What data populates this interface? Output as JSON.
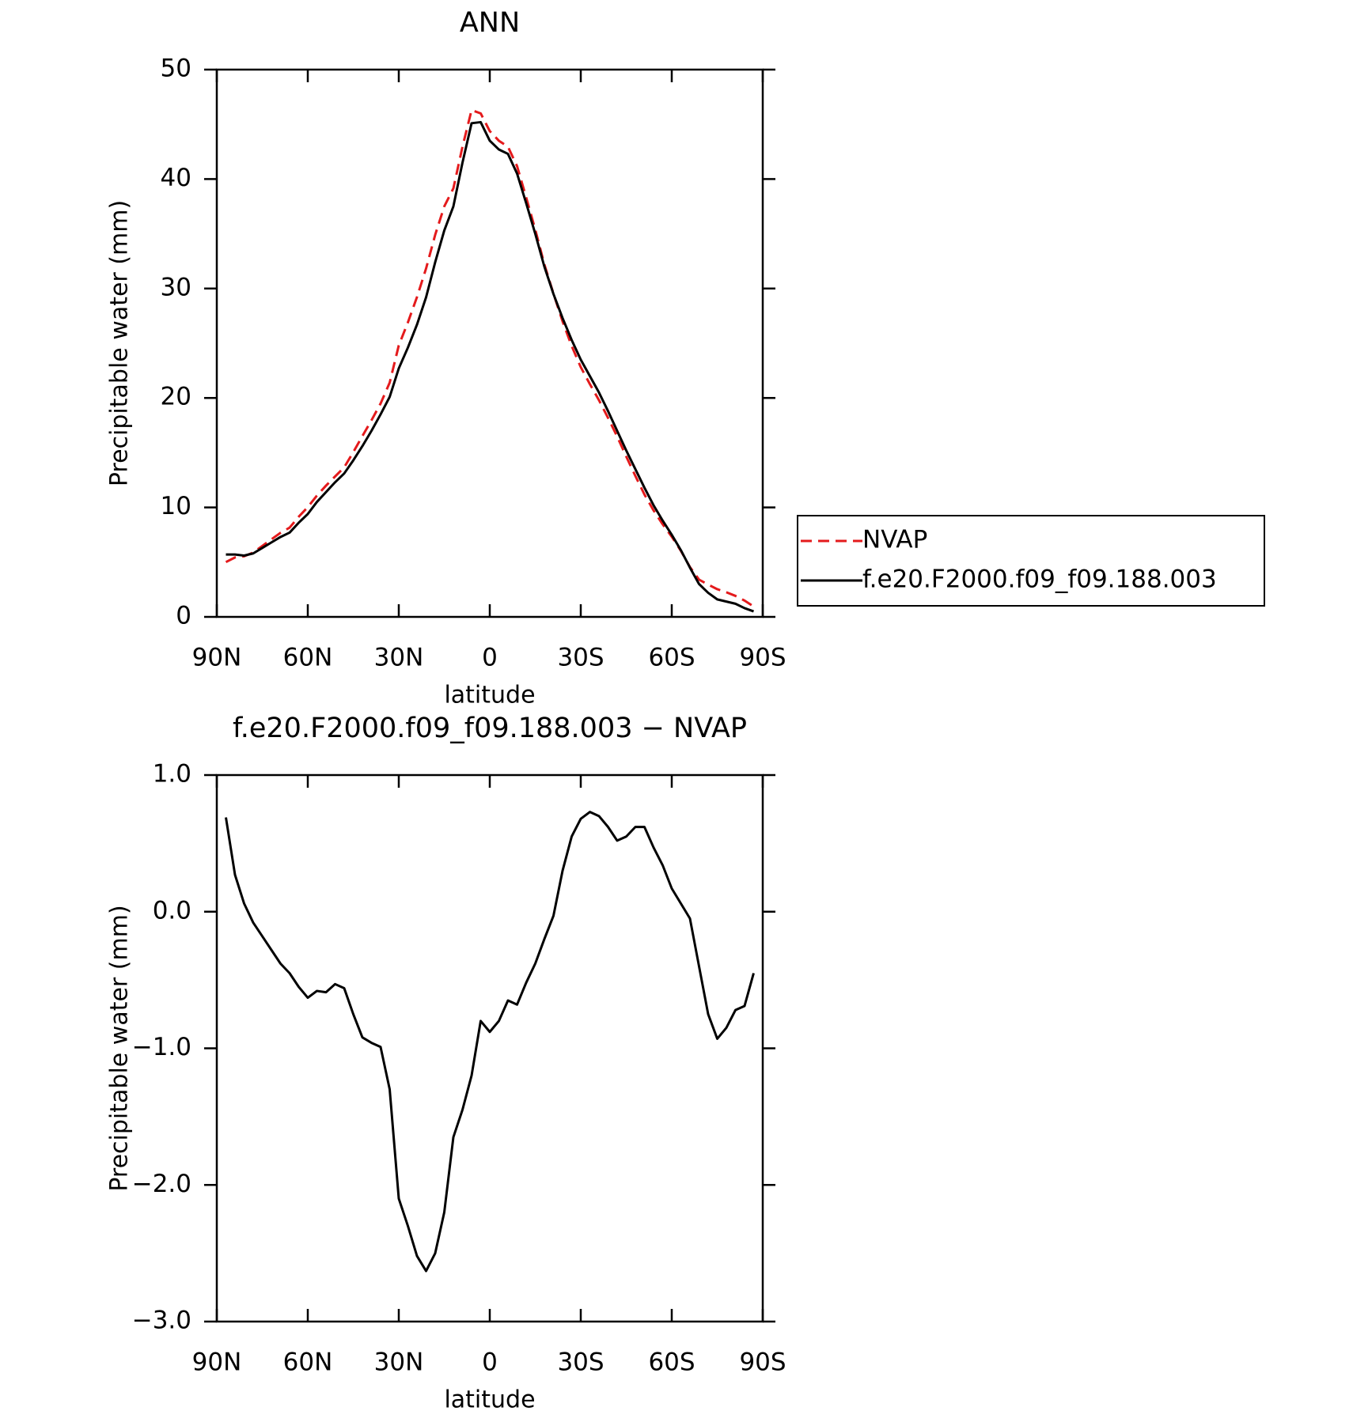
{
  "chart_data": [
    {
      "type": "line",
      "title": "ANN",
      "xlabel": "latitude",
      "ylabel": "Precipitable water (mm)",
      "x": [
        87,
        84,
        81,
        78,
        75,
        72,
        69,
        66,
        63,
        60,
        57,
        54,
        51,
        48,
        45,
        42,
        39,
        36,
        33,
        30,
        27,
        24,
        21,
        18,
        15,
        12,
        9,
        6,
        3,
        0,
        -3,
        -6,
        -9,
        -12,
        -15,
        -18,
        -21,
        -24,
        -27,
        -30,
        -33,
        -36,
        -39,
        -42,
        -45,
        -48,
        -51,
        -54,
        -57,
        -60,
        -63,
        -66,
        -69,
        -72,
        -75,
        -78,
        -81,
        -84,
        -87
      ],
      "xlim": [
        90,
        -90
      ],
      "xticks": [
        {
          "value": 90,
          "label": "90N"
        },
        {
          "value": 60,
          "label": "60N"
        },
        {
          "value": 30,
          "label": "30N"
        },
        0,
        {
          "value": -30,
          "label": "30S"
        },
        {
          "value": -60,
          "label": "60S"
        },
        {
          "value": -90,
          "label": "90S"
        }
      ],
      "ylim": [
        0,
        50
      ],
      "yticks": [
        0,
        10,
        20,
        30,
        40,
        50
      ],
      "legend": "right",
      "series": [
        {
          "name": "NVAP",
          "color": "#e41a1c",
          "dashed": true,
          "values": [
            5.01,
            5.43,
            5.54,
            5.88,
            6.48,
            7.08,
            7.68,
            8.15,
            9.15,
            10.03,
            11.08,
            11.99,
            12.83,
            13.66,
            15.05,
            16.52,
            17.96,
            19.49,
            21.4,
            24.8,
            26.9,
            29.22,
            31.83,
            34.9,
            37.5,
            39.15,
            42.95,
            46.3,
            46.0,
            44.38,
            43.5,
            42.95,
            41.18,
            38.32,
            35.38,
            32.2,
            29.53,
            27.0,
            24.75,
            22.82,
            21.27,
            19.8,
            18.18,
            16.48,
            14.65,
            12.88,
            11.18,
            9.73,
            8.46,
            7.33,
            6.04,
            4.55,
            3.4,
            2.95,
            2.53,
            2.25,
            1.92,
            1.49,
            0.95
          ]
        },
        {
          "name": "f.e20.F2000.f09_f09.188.003",
          "color": "#000000",
          "dashed": false,
          "values": [
            5.7,
            5.7,
            5.6,
            5.8,
            6.3,
            6.8,
            7.3,
            7.7,
            8.6,
            9.4,
            10.5,
            11.4,
            12.3,
            13.1,
            14.3,
            15.6,
            17.0,
            18.5,
            20.1,
            22.7,
            24.6,
            26.7,
            29.2,
            32.4,
            35.3,
            37.5,
            41.5,
            45.1,
            45.2,
            43.5,
            42.7,
            42.3,
            40.5,
            37.8,
            35.0,
            32.0,
            29.5,
            27.3,
            25.3,
            23.5,
            22.0,
            20.5,
            18.8,
            17.0,
            15.2,
            13.5,
            11.8,
            10.2,
            8.8,
            7.5,
            6.1,
            4.5,
            3.0,
            2.2,
            1.6,
            1.4,
            1.2,
            0.8,
            0.5
          ]
        }
      ]
    },
    {
      "type": "line",
      "title": "f.e20.F2000.f09_f09.188.003 − NVAP",
      "xlabel": "latitude",
      "ylabel": "Precipitable water (mm)",
      "x": [
        87,
        84,
        81,
        78,
        75,
        72,
        69,
        66,
        63,
        60,
        57,
        54,
        51,
        48,
        45,
        42,
        39,
        36,
        33,
        30,
        27,
        24,
        21,
        18,
        15,
        12,
        9,
        6,
        3,
        0,
        -3,
        -6,
        -9,
        -12,
        -15,
        -18,
        -21,
        -24,
        -27,
        -30,
        -33,
        -36,
        -39,
        -42,
        -45,
        -48,
        -51,
        -54,
        -57,
        -60,
        -63,
        -66,
        -69,
        -72,
        -75,
        -78,
        -81,
        -84,
        -87
      ],
      "xlim": [
        90,
        -90
      ],
      "xticks": [
        {
          "value": 90,
          "label": "90N"
        },
        {
          "value": 60,
          "label": "60N"
        },
        {
          "value": 30,
          "label": "30N"
        },
        0,
        {
          "value": -30,
          "label": "30S"
        },
        {
          "value": -60,
          "label": "60S"
        },
        {
          "value": -90,
          "label": "90S"
        }
      ],
      "ylim": [
        -3,
        1
      ],
      "yticks": [
        {
          "value": -3,
          "label": "−3.0"
        },
        {
          "value": -2,
          "label": "−2.0"
        },
        {
          "value": -1,
          "label": "−1.0"
        },
        {
          "value": 0,
          "label": "0.0"
        },
        {
          "value": 1,
          "label": "1.0"
        }
      ],
      "series": [
        {
          "color": "#000000",
          "dashed": false,
          "values": [
            0.69,
            0.27,
            0.06,
            -0.08,
            -0.18,
            -0.28,
            -0.38,
            -0.45,
            -0.55,
            -0.63,
            -0.58,
            -0.59,
            -0.53,
            -0.56,
            -0.75,
            -0.92,
            -0.96,
            -0.99,
            -1.3,
            -2.1,
            -2.3,
            -2.52,
            -2.63,
            -2.5,
            -2.2,
            -1.65,
            -1.45,
            -1.2,
            -0.8,
            -0.88,
            -0.8,
            -0.65,
            -0.68,
            -0.52,
            -0.38,
            -0.2,
            -0.03,
            0.3,
            0.55,
            0.68,
            0.73,
            0.7,
            0.62,
            0.52,
            0.55,
            0.62,
            0.62,
            0.47,
            0.34,
            0.17,
            0.06,
            -0.05,
            -0.4,
            -0.75,
            -0.93,
            -0.85,
            -0.72,
            -0.69,
            -0.45
          ]
        }
      ]
    }
  ]
}
